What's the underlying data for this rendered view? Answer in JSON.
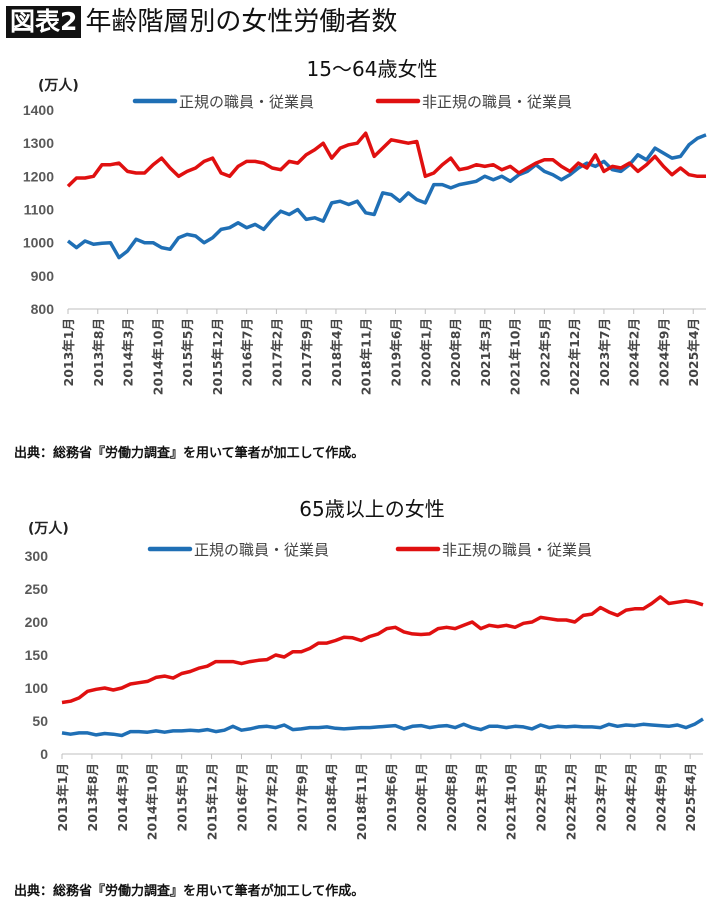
{
  "header": {
    "badge": "図表2",
    "title": "年齢階層別の女性労働者数"
  },
  "colors": {
    "regular": "#1f6fb5",
    "nonregular": "#e01010"
  },
  "source_note": "出典：総務省『労働力調査』を用いて筆者が加工して作成。",
  "chart_data": [
    {
      "type": "line",
      "title": "15〜64歳女性",
      "ylabel": "(万人)",
      "ylim": [
        800,
        1400
      ],
      "yticks": [
        "800",
        "900",
        "1000",
        "1100",
        "1200",
        "1300",
        "1400"
      ],
      "x_start": "2013-01",
      "x_step_months": 2,
      "xticks": [
        "2013年1月",
        "2013年8月",
        "2014年3月",
        "2014年10月",
        "2015年5月",
        "2015年12月",
        "2016年7月",
        "2017年2月",
        "2017年9月",
        "2018年4月",
        "2018年11月",
        "2019年6月",
        "2020年1月",
        "2020年8月",
        "2021年3月",
        "2021年10月",
        "2022年5月",
        "2022年12月",
        "2023年7月",
        "2024年2月",
        "2024年9月",
        "2025年4月"
      ],
      "legend": "top",
      "series": [
        {
          "name": "正規の職員・従業員",
          "color": "#1f6fb5",
          "values": [
            1005,
            985,
            1005,
            995,
            998,
            1000,
            955,
            975,
            1010,
            1000,
            1000,
            985,
            980,
            1015,
            1025,
            1020,
            1000,
            1015,
            1040,
            1045,
            1060,
            1045,
            1055,
            1040,
            1070,
            1095,
            1085,
            1100,
            1070,
            1075,
            1065,
            1120,
            1125,
            1115,
            1125,
            1090,
            1085,
            1150,
            1145,
            1125,
            1150,
            1130,
            1120,
            1175,
            1175,
            1165,
            1175,
            1180,
            1185,
            1200,
            1190,
            1200,
            1185,
            1205,
            1215,
            1235,
            1215,
            1205,
            1190,
            1205,
            1225,
            1240,
            1230,
            1245,
            1220,
            1215,
            1235,
            1265,
            1250,
            1285,
            1270,
            1255,
            1260,
            1295,
            1315,
            1325
          ]
        },
        {
          "name": "非正規の職員・従業員",
          "color": "#e01010",
          "values": [
            1170,
            1195,
            1195,
            1200,
            1235,
            1235,
            1240,
            1215,
            1210,
            1210,
            1235,
            1255,
            1225,
            1200,
            1215,
            1225,
            1245,
            1255,
            1210,
            1200,
            1230,
            1245,
            1245,
            1240,
            1225,
            1220,
            1245,
            1240,
            1265,
            1280,
            1300,
            1255,
            1285,
            1295,
            1300,
            1330,
            1260,
            1285,
            1310,
            1305,
            1300,
            1305,
            1200,
            1210,
            1235,
            1255,
            1220,
            1225,
            1235,
            1230,
            1235,
            1220,
            1230,
            1210,
            1225,
            1240,
            1250,
            1250,
            1230,
            1215,
            1240,
            1225,
            1265,
            1215,
            1230,
            1225,
            1240,
            1215,
            1235,
            1260,
            1230,
            1205,
            1225,
            1205,
            1200,
            1200
          ]
        }
      ]
    },
    {
      "type": "line",
      "title": "65歳以上の女性",
      "ylabel": "(万人)",
      "ylim": [
        0,
        300
      ],
      "yticks": [
        "0",
        "50",
        "100",
        "150",
        "200",
        "250",
        "300"
      ],
      "x_start": "2013-01",
      "x_step_months": 2,
      "xticks": [
        "2013年1月",
        "2013年8月",
        "2014年3月",
        "2014年10月",
        "2015年5月",
        "2015年12月",
        "2016年7月",
        "2017年2月",
        "2017年9月",
        "2018年4月",
        "2018年11月",
        "2019年6月",
        "2020年1月",
        "2020年8月",
        "2021年3月",
        "2021年10月",
        "2022年5月",
        "2022年12月",
        "2023年7月",
        "2024年2月",
        "2024年9月",
        "2025年4月"
      ],
      "legend": "top",
      "series": [
        {
          "name": "正規の職員・従業員",
          "color": "#1f6fb5",
          "values": [
            32,
            30,
            32,
            32,
            29,
            31,
            30,
            28,
            34,
            34,
            33,
            35,
            33,
            35,
            35,
            36,
            35,
            37,
            34,
            36,
            42,
            36,
            38,
            41,
            42,
            40,
            44,
            37,
            38,
            40,
            40,
            41,
            39,
            38,
            39,
            40,
            40,
            41,
            42,
            43,
            38,
            42,
            43,
            40,
            42,
            43,
            40,
            45,
            40,
            37,
            42,
            42,
            40,
            42,
            41,
            38,
            44,
            40,
            42,
            41,
            42,
            41,
            41,
            40,
            45,
            42,
            44,
            43,
            45,
            44,
            43,
            42,
            44,
            40,
            45,
            53
          ]
        },
        {
          "name": "非正規の職員・従業員",
          "color": "#e01010",
          "values": [
            78,
            80,
            85,
            95,
            98,
            100,
            97,
            100,
            106,
            108,
            110,
            116,
            118,
            115,
            122,
            125,
            130,
            133,
            140,
            140,
            140,
            137,
            140,
            142,
            143,
            150,
            147,
            155,
            155,
            160,
            168,
            168,
            172,
            177,
            176,
            172,
            178,
            182,
            190,
            192,
            185,
            182,
            181,
            182,
            190,
            192,
            190,
            195,
            200,
            190,
            195,
            193,
            195,
            192,
            198,
            200,
            207,
            205,
            203,
            203,
            200,
            210,
            212,
            222,
            215,
            210,
            218,
            220,
            220,
            228,
            238,
            228,
            230,
            232,
            230,
            226
          ]
        }
      ]
    }
  ]
}
